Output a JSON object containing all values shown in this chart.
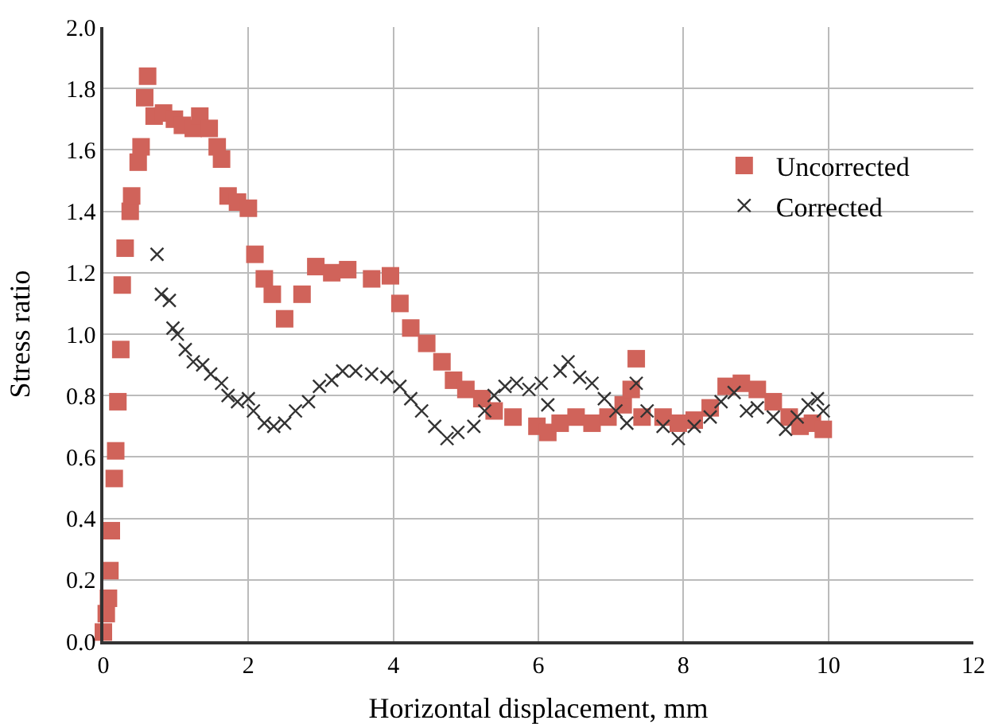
{
  "chart_data": {
    "type": "scatter",
    "xlabel": "Horizontal displacement, mm",
    "ylabel": "Stress ratio",
    "xlim": [
      0,
      12
    ],
    "xticks": [
      0,
      2,
      4,
      6,
      8,
      10,
      12
    ],
    "ylim": [
      0,
      2
    ],
    "yticks": [
      {
        "value": 0,
        "label": "0.0"
      },
      {
        "value": 0.2,
        "label": "0.2"
      },
      {
        "value": 0.4,
        "label": "0.4"
      },
      {
        "value": 0.6,
        "label": "0.6"
      },
      {
        "value": 0.8,
        "label": "0.8"
      },
      {
        "value": 1,
        "label": "1.0"
      },
      {
        "value": 1.2,
        "label": "1.2"
      },
      {
        "value": 1.4,
        "label": "1.4"
      },
      {
        "value": 1.6,
        "label": "1.6"
      },
      {
        "value": 1.8,
        "label": "1.8"
      },
      {
        "value": 2,
        "label": "2.0"
      }
    ],
    "grid": true,
    "legend": "top right",
    "series": [
      {
        "name": "Uncorrected",
        "color": "#d0635a",
        "marker": "square",
        "x": [
          0,
          0.04,
          0.07,
          0.09,
          0.11,
          0.15,
          0.17,
          0.2,
          0.24,
          0.26,
          0.3,
          0.37,
          0.39,
          0.48,
          0.52,
          0.57,
          0.61,
          0.7,
          0.83,
          0.98,
          1.09,
          1.24,
          1.33,
          1.46,
          1.57,
          1.63,
          1.72,
          1.85,
          2,
          2.09,
          2.22,
          2.33,
          2.5,
          2.74,
          2.93,
          3.15,
          3.37,
          3.7,
          3.96,
          4.09,
          4.24,
          4.46,
          4.67,
          4.83,
          5,
          5.22,
          5.39,
          5.65,
          5.98,
          6.13,
          6.3,
          6.52,
          6.74,
          6.96,
          7.17,
          7.28,
          7.35,
          7.43,
          7.72,
          7.93,
          8.15,
          8.37,
          8.59,
          8.8,
          9.02,
          9.24,
          9.46,
          9.61,
          9.78,
          9.93
        ],
        "values": [
          0.03,
          0.09,
          0.14,
          0.23,
          0.36,
          0.53,
          0.62,
          0.78,
          0.95,
          1.16,
          1.28,
          1.4,
          1.45,
          1.56,
          1.61,
          1.77,
          1.84,
          1.71,
          1.72,
          1.7,
          1.68,
          1.67,
          1.71,
          1.67,
          1.61,
          1.57,
          1.45,
          1.43,
          1.41,
          1.26,
          1.18,
          1.13,
          1.05,
          1.13,
          1.22,
          1.2,
          1.21,
          1.18,
          1.19,
          1.1,
          1.02,
          0.97,
          0.91,
          0.85,
          0.82,
          0.79,
          0.75,
          0.73,
          0.7,
          0.68,
          0.71,
          0.73,
          0.71,
          0.73,
          0.77,
          0.82,
          0.92,
          0.73,
          0.73,
          0.71,
          0.72,
          0.76,
          0.83,
          0.84,
          0.82,
          0.78,
          0.73,
          0.7,
          0.71,
          0.69
        ]
      },
      {
        "name": "Corrected",
        "color": "#333333",
        "marker": "cross",
        "x": [
          0.74,
          0.8,
          0.91,
          0.96,
          1.02,
          1.13,
          1.24,
          1.37,
          1.48,
          1.63,
          1.72,
          1.85,
          2,
          2.07,
          2.22,
          2.35,
          2.5,
          2.65,
          2.83,
          2.98,
          3.15,
          3.3,
          3.48,
          3.7,
          3.91,
          4.09,
          4.24,
          4.39,
          4.57,
          4.74,
          4.89,
          5.11,
          5.26,
          5.39,
          5.54,
          5.7,
          5.87,
          6.04,
          6.13,
          6.3,
          6.41,
          6.57,
          6.74,
          6.91,
          7.07,
          7.22,
          7.35,
          7.5,
          7.72,
          7.93,
          8.15,
          8.37,
          8.52,
          8.7,
          8.87,
          9.02,
          9.24,
          9.41,
          9.57,
          9.72,
          9.85,
          9.93
        ],
        "values": [
          1.26,
          1.13,
          1.11,
          1.02,
          1,
          0.95,
          0.91,
          0.9,
          0.87,
          0.84,
          0.8,
          0.78,
          0.79,
          0.75,
          0.71,
          0.7,
          0.71,
          0.75,
          0.78,
          0.83,
          0.85,
          0.88,
          0.88,
          0.87,
          0.86,
          0.83,
          0.79,
          0.75,
          0.7,
          0.66,
          0.68,
          0.7,
          0.75,
          0.8,
          0.83,
          0.84,
          0.82,
          0.84,
          0.77,
          0.88,
          0.91,
          0.86,
          0.84,
          0.79,
          0.75,
          0.71,
          0.84,
          0.75,
          0.7,
          0.66,
          0.7,
          0.73,
          0.78,
          0.81,
          0.75,
          0.76,
          0.73,
          0.69,
          0.73,
          0.77,
          0.79,
          0.75
        ]
      }
    ]
  }
}
